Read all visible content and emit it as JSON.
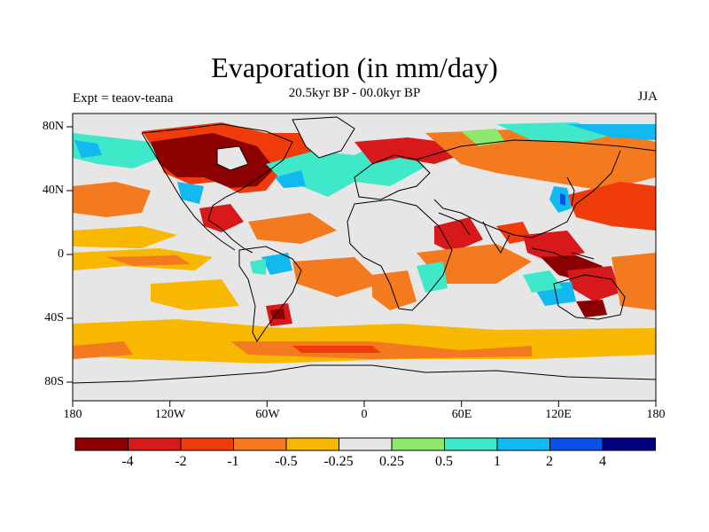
{
  "title": "Evaporation (in mm/day)",
  "subtitle": "20.5kyr BP - 00.0kyr BP",
  "left_label": "Expt = teaov-teana",
  "right_label": "JJA",
  "axes": {
    "lon_ticks": [
      "180",
      "120W",
      "60W",
      "0",
      "60E",
      "120E",
      "180"
    ],
    "lat_ticks": [
      "80N",
      "40N",
      "0",
      "40S",
      "80S"
    ]
  },
  "colorbar": {
    "colors": [
      "#8b0000",
      "#d7191c",
      "#f03c0a",
      "#f47a20",
      "#f9b800",
      "#e6e6e6",
      "#8de86e",
      "#3ee8c8",
      "#12b8f0",
      "#0a50e6",
      "#000080"
    ],
    "labels": [
      "-4",
      "-2",
      "-1",
      "-0.5",
      "-0.25",
      "0.25",
      "0.5",
      "1",
      "2",
      "4"
    ]
  },
  "map_colors": {
    "background": "#e6e6e6",
    "coastline": "#000000"
  }
}
